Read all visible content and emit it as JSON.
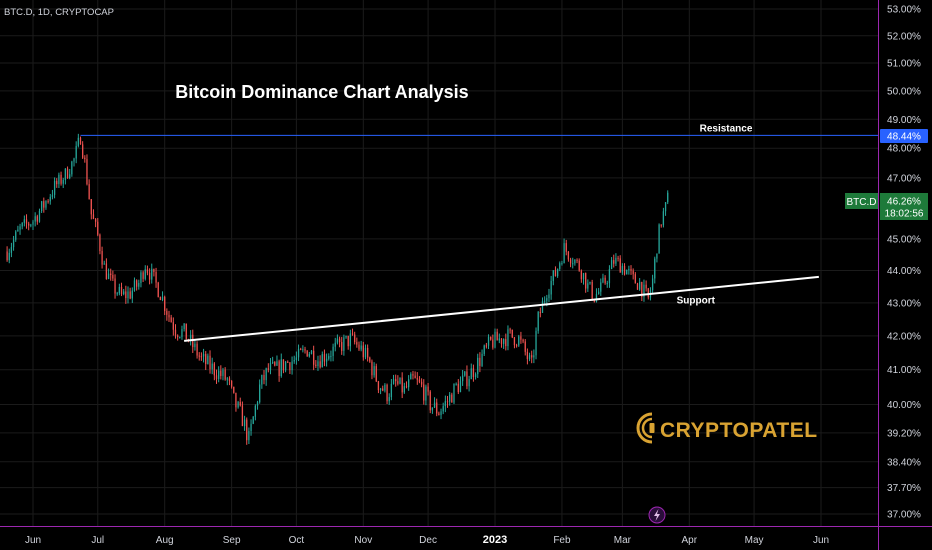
{
  "header": {
    "symbol_line": "BTC.D, 1D, CRYPTOCAP"
  },
  "chart_data": {
    "type": "candlestick",
    "title": "Bitcoin Dominance Chart Analysis",
    "y_axis": {
      "unit": "%",
      "scale": "log",
      "range": [
        36.8,
        53.2
      ],
      "ticks": [
        "53.00%",
        "52.00%",
        "51.00%",
        "50.00%",
        "49.00%",
        "48.00%",
        "47.00%",
        "45.00%",
        "44.00%",
        "43.00%",
        "42.00%",
        "41.00%",
        "40.00%",
        "39.20%",
        "38.40%",
        "37.70%",
        "37.00%"
      ],
      "tick_values": [
        53,
        52,
        51,
        50,
        49,
        48,
        47,
        45,
        44,
        43,
        42,
        41,
        40,
        39.2,
        38.4,
        37.7,
        37
      ]
    },
    "x_axis": {
      "labels": [
        "Jun",
        "Jul",
        "Aug",
        "Sep",
        "Oct",
        "Nov",
        "Dec",
        "2023",
        "Feb",
        "Mar",
        "Apr",
        "May",
        "Jun"
      ],
      "bold_label": "2023",
      "label_dates": [
        "2022-06-01",
        "2022-07-01",
        "2022-08-01",
        "2022-09-01",
        "2022-10-01",
        "2022-11-01",
        "2022-12-01",
        "2023-01-01",
        "2023-02-01",
        "2023-03-01",
        "2023-04-01",
        "2023-05-01",
        "2023-06-01"
      ],
      "date_range": [
        "2022-05-20",
        "2023-06-15"
      ]
    },
    "price_path": [
      [
        "2022-05-20",
        44.6
      ],
      [
        "2022-05-26",
        45.3
      ],
      [
        "2022-06-01",
        45.6
      ],
      [
        "2022-06-06",
        46.1
      ],
      [
        "2022-06-11",
        46.7
      ],
      [
        "2022-06-16",
        47.1
      ],
      [
        "2022-06-20",
        47.6
      ],
      [
        "2022-06-23",
        48.4
      ],
      [
        "2022-06-25",
        47.5
      ],
      [
        "2022-06-28",
        45.8
      ],
      [
        "2022-07-01",
        45.1
      ],
      [
        "2022-07-04",
        44.1
      ],
      [
        "2022-07-08",
        43.5
      ],
      [
        "2022-07-12",
        43.2
      ],
      [
        "2022-07-16",
        43.3
      ],
      [
        "2022-07-20",
        43.6
      ],
      [
        "2022-07-23",
        44.2
      ],
      [
        "2022-07-27",
        43.7
      ],
      [
        "2022-07-30",
        43.3
      ],
      [
        "2022-08-03",
        42.6
      ],
      [
        "2022-08-06",
        42.2
      ],
      [
        "2022-08-10",
        42.1
      ],
      [
        "2022-08-14",
        41.7
      ],
      [
        "2022-08-18",
        41.3
      ],
      [
        "2022-08-22",
        41.1
      ],
      [
        "2022-08-26",
        40.9
      ],
      [
        "2022-08-30",
        40.7
      ],
      [
        "2022-09-02",
        40.1
      ],
      [
        "2022-09-06",
        39.6
      ],
      [
        "2022-09-09",
        39.0
      ],
      [
        "2022-09-11",
        39.6
      ],
      [
        "2022-09-14",
        40.5
      ],
      [
        "2022-09-18",
        41.0
      ],
      [
        "2022-09-22",
        41.0
      ],
      [
        "2022-09-26",
        41.2
      ],
      [
        "2022-10-01",
        41.3
      ],
      [
        "2022-10-06",
        41.6
      ],
      [
        "2022-10-11",
        41.3
      ],
      [
        "2022-10-16",
        41.5
      ],
      [
        "2022-10-21",
        41.7
      ],
      [
        "2022-10-26",
        41.9
      ],
      [
        "2022-10-31",
        41.6
      ],
      [
        "2022-11-04",
        41.2
      ],
      [
        "2022-11-08",
        40.6
      ],
      [
        "2022-11-12",
        40.3
      ],
      [
        "2022-11-16",
        40.6
      ],
      [
        "2022-11-20",
        40.4
      ],
      [
        "2022-11-24",
        40.7
      ],
      [
        "2022-11-28",
        40.5
      ],
      [
        "2022-12-02",
        40.0
      ],
      [
        "2022-12-06",
        39.8
      ],
      [
        "2022-12-10",
        40.1
      ],
      [
        "2022-12-14",
        40.5
      ],
      [
        "2022-12-18",
        40.7
      ],
      [
        "2022-12-22",
        41.0
      ],
      [
        "2022-12-26",
        41.4
      ],
      [
        "2022-12-30",
        41.8
      ],
      [
        "2023-01-03",
        41.9
      ],
      [
        "2023-01-08",
        42.0
      ],
      [
        "2023-01-12",
        41.9
      ],
      [
        "2023-01-15",
        41.5
      ],
      [
        "2023-01-18",
        41.1
      ],
      [
        "2023-01-21",
        42.5
      ],
      [
        "2023-01-25",
        43.4
      ],
      [
        "2023-01-29",
        43.9
      ],
      [
        "2023-02-02",
        44.7
      ],
      [
        "2023-02-06",
        44.4
      ],
      [
        "2023-02-10",
        44.0
      ],
      [
        "2023-02-13",
        43.5
      ],
      [
        "2023-02-16",
        43.2
      ],
      [
        "2023-02-19",
        43.4
      ],
      [
        "2023-02-22",
        43.8
      ],
      [
        "2023-02-25",
        44.3
      ],
      [
        "2023-02-28",
        44.2
      ],
      [
        "2023-03-03",
        44.0
      ],
      [
        "2023-03-06",
        43.7
      ],
      [
        "2023-03-09",
        43.6
      ],
      [
        "2023-03-11",
        43.3
      ],
      [
        "2023-03-13",
        43.1
      ],
      [
        "2023-03-15",
        43.7
      ],
      [
        "2023-03-17",
        44.8
      ],
      [
        "2023-03-19",
        45.6
      ],
      [
        "2023-03-21",
        46.0
      ],
      [
        "2023-03-22",
        46.3
      ]
    ],
    "annotations": {
      "resistance": {
        "label": "Resistance",
        "value": 48.44,
        "tag": "48.44%",
        "color": "#2962ff",
        "start": "2022-06-23",
        "end": "2023-06-15"
      },
      "support": {
        "label": "Support",
        "color": "#ffffff",
        "start": [
          "2022-08-10",
          41.85
        ],
        "end": [
          "2023-05-31",
          43.8
        ]
      }
    },
    "last_price": {
      "label": "BTC.D",
      "value": "46.26%",
      "countdown": "18:02:56",
      "numeric": 46.26,
      "color": "#1e7a3a"
    },
    "colors": {
      "up": "#26a69a",
      "down": "#ef5350",
      "grid": "#1b1b1b",
      "axis_text": "#d1d4dc",
      "border": "#9c27b0"
    }
  },
  "watermark": {
    "logo_text": "CRYPTOPATEL",
    "icon": "bolt-icon"
  }
}
